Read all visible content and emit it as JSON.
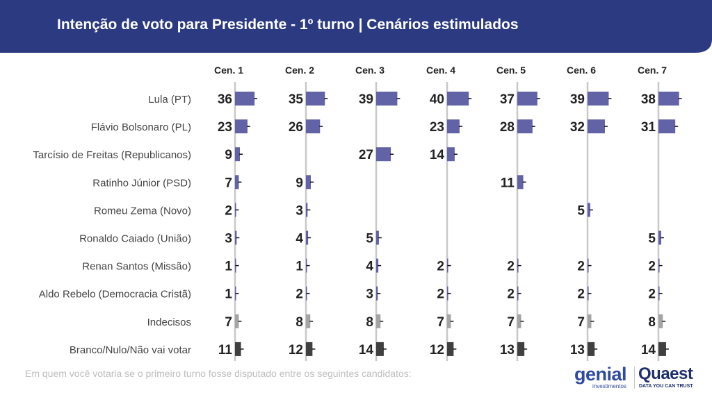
{
  "header": {
    "title": "Intenção de voto para Presidente - 1º turno | Cenários estimulados"
  },
  "footnote": "Em quem você votaria se o primeiro turno fosse disputado entre os seguintes candidatos:",
  "logos": {
    "genial": "genial",
    "genial_sub": "investimentos",
    "quaest": "Quaest",
    "quaest_sub": "DATA YOU CAN TRUST"
  },
  "colors": {
    "header_bg": "#2c3a82",
    "candidate_bar": "#6262a6",
    "indecisos_bar": "#a4a4a4",
    "branco_bar": "#404040"
  },
  "chart_data": {
    "type": "bar",
    "orientation": "horizontal",
    "categories": [
      "Lula (PT)",
      "Flávio Bolsonaro (PL)",
      "Tarcísio de Freitas (Republicanos)",
      "Ratinho Júnior (PSD)",
      "Romeu Zema (Novo)",
      "Ronaldo Caiado (União)",
      "Renan Santos (Missão)",
      "Aldo Rebelo (Democracia Cristã)",
      "Indecisos",
      "Branco/Nulo/Não vai votar"
    ],
    "series": [
      {
        "name": "Cen. 1",
        "values": [
          36,
          23,
          9,
          7,
          2,
          3,
          1,
          1,
          7,
          11
        ]
      },
      {
        "name": "Cen. 2",
        "values": [
          35,
          26,
          null,
          9,
          3,
          4,
          1,
          2,
          8,
          12
        ]
      },
      {
        "name": "Cen. 3",
        "values": [
          39,
          null,
          27,
          null,
          null,
          5,
          4,
          3,
          8,
          14
        ]
      },
      {
        "name": "Cen. 4",
        "values": [
          40,
          23,
          14,
          null,
          null,
          null,
          2,
          2,
          7,
          12
        ]
      },
      {
        "name": "Cen. 5",
        "values": [
          37,
          28,
          null,
          11,
          null,
          null,
          2,
          2,
          7,
          13
        ]
      },
      {
        "name": "Cen. 6",
        "values": [
          39,
          32,
          null,
          null,
          5,
          null,
          2,
          2,
          7,
          13
        ]
      },
      {
        "name": "Cen. 7",
        "values": [
          38,
          31,
          null,
          null,
          null,
          5,
          2,
          2,
          8,
          14
        ]
      }
    ]
  }
}
